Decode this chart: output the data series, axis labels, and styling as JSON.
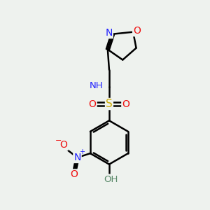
{
  "background_color": "#eef2ee",
  "atom_colors": {
    "C": "#000000",
    "H": "#5a8a6a",
    "N": "#2020ff",
    "O": "#ee1010",
    "S": "#ccaa00"
  },
  "bond_color": "#000000",
  "bond_width": 1.8,
  "fig_bg": "#eef2ee"
}
